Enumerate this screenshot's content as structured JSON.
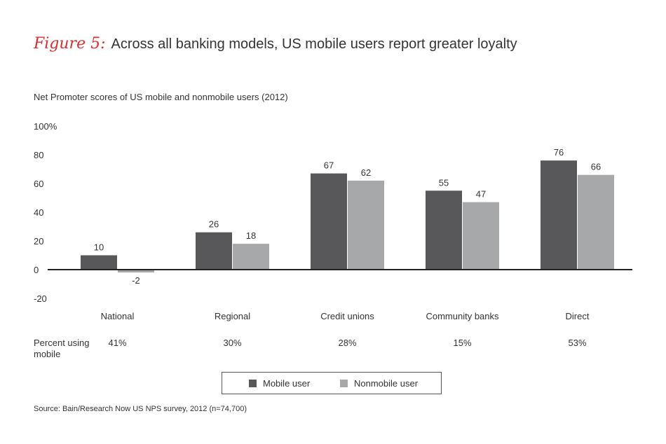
{
  "header": {
    "figure_label": "Figure 5:",
    "title": "Across all banking models, US mobile users report greater loyalty"
  },
  "subtitle": "Net Promoter scores of US mobile and nonmobile users (2012)",
  "chart_data": {
    "type": "bar",
    "categories": [
      "National",
      "Regional",
      "Credit unions",
      "Community banks",
      "Direct"
    ],
    "series": [
      {
        "name": "Mobile user",
        "values": [
          10,
          26,
          67,
          55,
          76
        ],
        "color": "#58585a"
      },
      {
        "name": "Nonmobile user",
        "values": [
          -2,
          18,
          62,
          47,
          66
        ],
        "color": "#a7a8aa"
      }
    ],
    "y_ticks": [
      "100%",
      "80",
      "60",
      "40",
      "20",
      "0",
      "-20"
    ],
    "y_tick_values": [
      100,
      80,
      60,
      40,
      20,
      0,
      -20
    ],
    "ylim": [
      -20,
      100
    ],
    "grid": false,
    "legend_position": "bottom-center"
  },
  "percent_row": {
    "label": "Percent using mobile",
    "values": [
      "41%",
      "30%",
      "28%",
      "15%",
      "53%"
    ]
  },
  "legend": {
    "items": [
      {
        "label": "Mobile user",
        "color": "#58585a"
      },
      {
        "label": "Nonmobile user",
        "color": "#a7a8aa"
      }
    ]
  },
  "source": "Source: Bain/Research Now US NPS survey, 2012 (n=74,700)"
}
